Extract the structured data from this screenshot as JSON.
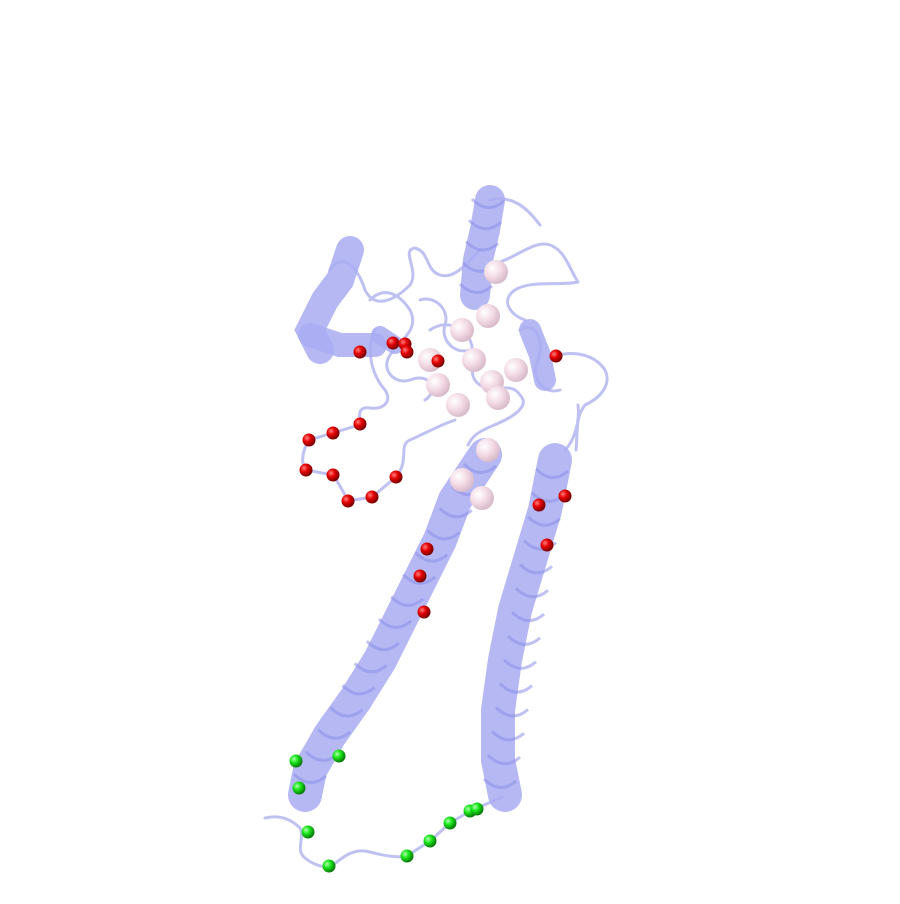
{
  "scene": {
    "background": "#ffffff",
    "ribbon_color": "#a9acf2",
    "ribbon_edge": "#8c90e6",
    "loop_color": "#b8bbf0",
    "sphere_colors": {
      "red": "#e60000",
      "green": "#19e619",
      "pink": "#f3d8e3"
    }
  }
}
